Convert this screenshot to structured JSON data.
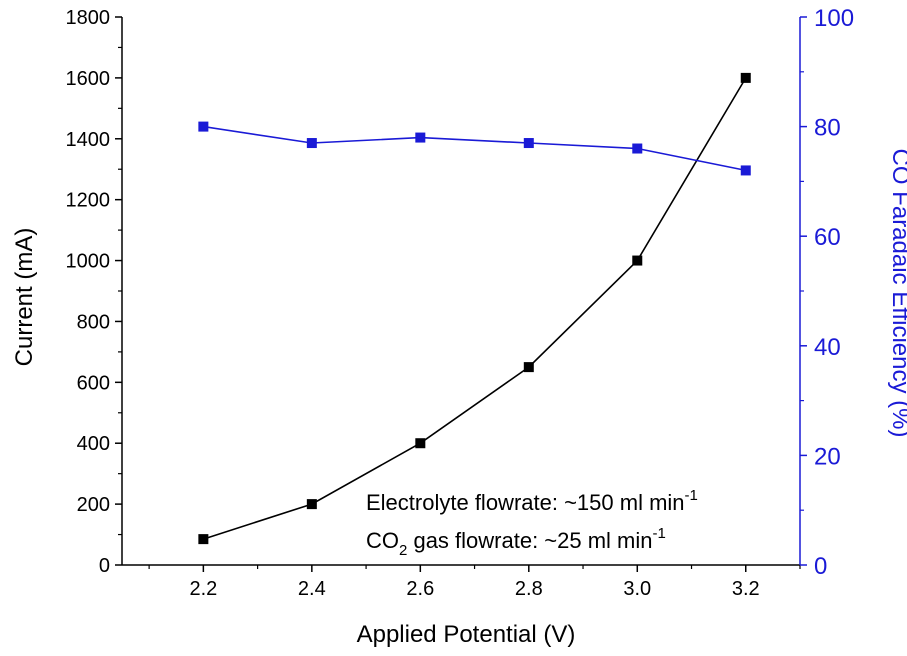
{
  "chart_data": {
    "type": "line",
    "xlabel": "Applied Potential (V)",
    "x": [
      2.2,
      2.4,
      2.6,
      2.8,
      3.0,
      3.2
    ],
    "xlim": [
      2.05,
      3.3
    ],
    "xticks": [
      "2.2",
      "2.4",
      "2.6",
      "2.8",
      "3.0",
      "3.2"
    ],
    "grid": false,
    "legend": "none",
    "y_left": {
      "label": "Current (mA)",
      "ylim": [
        0,
        1800
      ],
      "ticks": [
        "0",
        "200",
        "400",
        "600",
        "800",
        "1000",
        "1200",
        "1400",
        "1600",
        "1800"
      ],
      "color": "#000000"
    },
    "y_right": {
      "label": "CO Faradaic Efficiency (%)",
      "ylim": [
        0,
        100
      ],
      "ticks": [
        "0",
        "20",
        "40",
        "60",
        "80",
        "100"
      ],
      "color": "#1a1ad6"
    },
    "series": [
      {
        "axis": "left",
        "color": "#000000",
        "values": [
          85,
          200,
          400,
          650,
          1000,
          1600
        ]
      },
      {
        "axis": "right",
        "color": "#1a1ad6",
        "values": [
          80,
          77,
          78,
          77,
          76,
          72
        ]
      }
    ],
    "annotations": [
      {
        "pre": "Electrolyte flowrate: ~150 ml min",
        "sub": "",
        "post": "",
        "sup": "-1"
      },
      {
        "pre": "CO",
        "sub": "2",
        "post": " gas flowrate: ~25 ml min",
        "sup": "-1"
      }
    ]
  }
}
